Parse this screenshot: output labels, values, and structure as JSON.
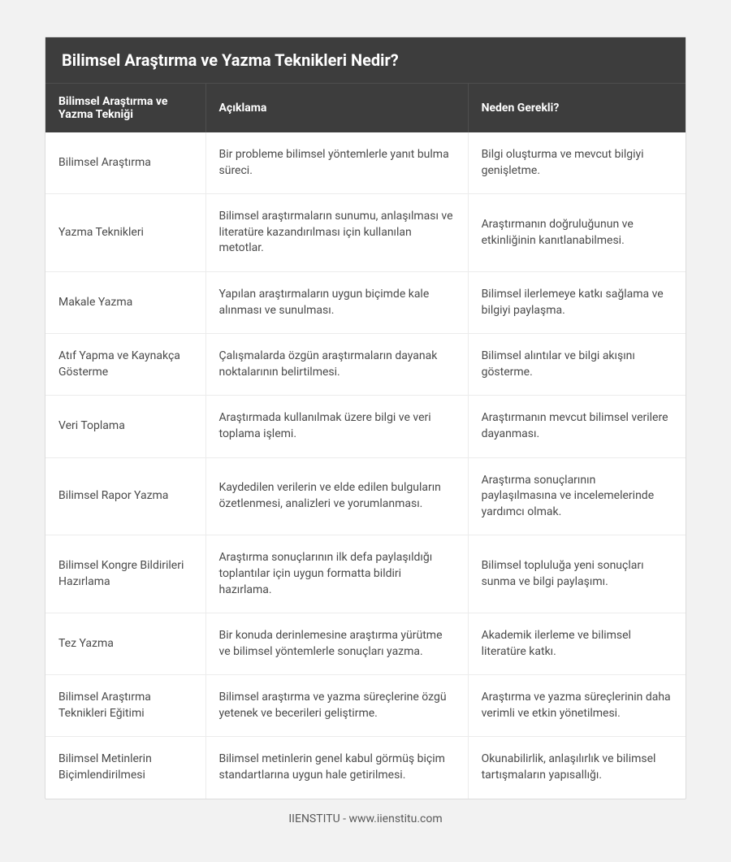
{
  "title": "Bilimsel Araştırma ve Yazma Teknikleri Nedir?",
  "columns": [
    "Bilimsel Araştırma ve Yazma Tekniği",
    "Açıklama",
    "Neden Gerekli?"
  ],
  "rows": [
    {
      "c0": "Bilimsel Araştırma",
      "c1": "Bir probleme bilimsel yöntemlerle yanıt bulma süreci.",
      "c2": "Bilgi oluşturma ve mevcut bilgiyi genişletme."
    },
    {
      "c0": "Yazma Teknikleri",
      "c1": "Bilimsel araştırmaların sunumu, anlaşılması ve literatüre kazandırılması için kullanılan metotlar.",
      "c2": "Araştırmanın doğruluğunun ve etkinliğinin kanıtlanabilmesi."
    },
    {
      "c0": "Makale Yazma",
      "c1": "Yapılan araştırmaların uygun biçimde kale alınması ve sunulması.",
      "c2": "Bilimsel ilerlemeye katkı sağlama ve bilgiyi paylaşma."
    },
    {
      "c0": "Atıf Yapma ve Kaynakça Gösterme",
      "c1": "Çalışmalarda özgün araştırmaların dayanak noktalarının belirtilmesi.",
      "c2": "Bilimsel alıntılar ve bilgi akışını gösterme."
    },
    {
      "c0": "Veri Toplama",
      "c1": "Araştırmada kullanılmak üzere bilgi ve veri toplama işlemi.",
      "c2": "Araştırmanın mevcut bilimsel verilere dayanması."
    },
    {
      "c0": "Bilimsel Rapor Yazma",
      "c1": "Kaydedilen verilerin ve elde edilen bulguların özetlenmesi, analizleri ve yorumlanması.",
      "c2": "Araştırma sonuçlarının paylaşılmasına ve incelemelerinde yardımcı olmak."
    },
    {
      "c0": "Bilimsel Kongre Bildirileri Hazırlama",
      "c1": "Araştırma sonuçlarının ilk defa paylaşıldığı toplantılar için uygun formatta bildiri hazırlama.",
      "c2": "Bilimsel topluluğa yeni sonuçları sunma ve bilgi paylaşımı."
    },
    {
      "c0": "Tez Yazma",
      "c1": "Bir konuda derinlemesine araştırma yürütme ve bilimsel yöntemlerle sonuçları yazma.",
      "c2": "Akademik ilerleme ve bilimsel literatüre katkı."
    },
    {
      "c0": "Bilimsel Araştırma Teknikleri Eğitimi",
      "c1": "Bilimsel araştırma ve yazma süreçlerine özgü yetenek ve becerileri geliştirme.",
      "c2": "Araştırma ve yazma süreçlerinin daha verimli ve etkin yönetilmesi."
    },
    {
      "c0": "Bilimsel Metinlerin Biçimlendirilmesi",
      "c1": "Bilimsel metinlerin genel kabul görmüş biçim standartlarına uygun hale getirilmesi.",
      "c2": "Okunabilirlik, anlaşılırlık ve bilimsel tartışmaların yapısallığı."
    }
  ],
  "footer": "IIENSTITU - www.iienstitu.com",
  "styles": {
    "page_background": "#f2f2f2",
    "card_background": "#ffffff",
    "card_border": "#dcdcdc",
    "header_background": "#3d3d3d",
    "header_text_color": "#ffffff",
    "header_divider": "#4e4e4e",
    "body_text_color": "#4a4a4a",
    "body_divider": "#ececec",
    "title_fontsize": 20,
    "header_fontsize": 14,
    "cell_fontsize": 14,
    "footer_fontsize": 14,
    "col_widths_pct": [
      25,
      41,
      34
    ]
  }
}
